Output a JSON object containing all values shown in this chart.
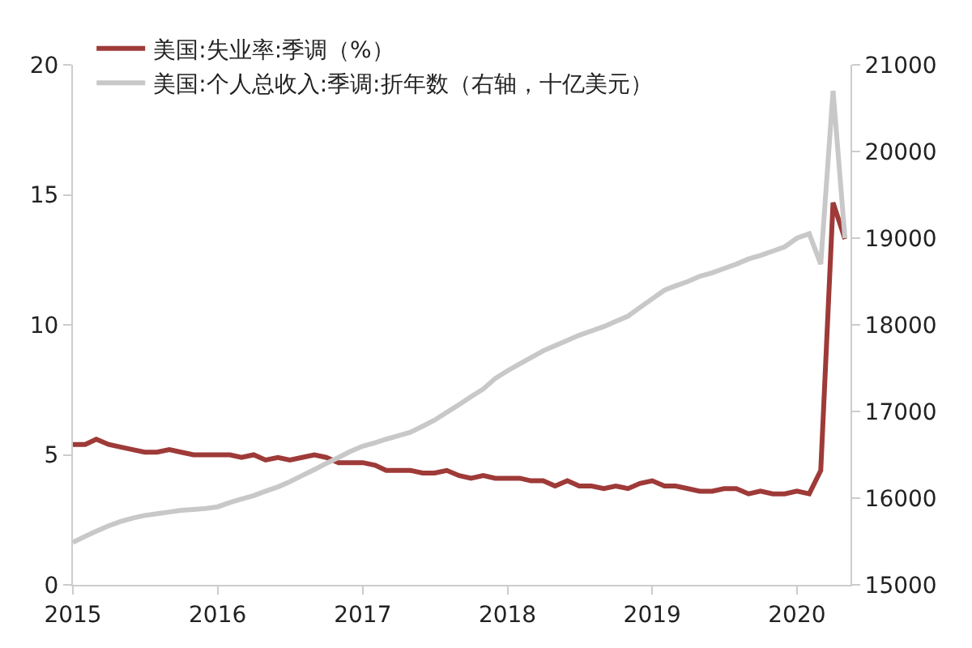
{
  "chart_data": {
    "type": "line",
    "x": [
      "2015-01",
      "2015-02",
      "2015-03",
      "2015-04",
      "2015-05",
      "2015-06",
      "2015-07",
      "2015-08",
      "2015-09",
      "2015-10",
      "2015-11",
      "2015-12",
      "2016-01",
      "2016-02",
      "2016-03",
      "2016-04",
      "2016-05",
      "2016-06",
      "2016-07",
      "2016-08",
      "2016-09",
      "2016-10",
      "2016-11",
      "2016-12",
      "2017-01",
      "2017-02",
      "2017-03",
      "2017-04",
      "2017-05",
      "2017-06",
      "2017-07",
      "2017-08",
      "2017-09",
      "2017-10",
      "2017-11",
      "2017-12",
      "2018-01",
      "2018-02",
      "2018-03",
      "2018-04",
      "2018-05",
      "2018-06",
      "2018-07",
      "2018-08",
      "2018-09",
      "2018-10",
      "2018-11",
      "2018-12",
      "2019-01",
      "2019-02",
      "2019-03",
      "2019-04",
      "2019-05",
      "2019-06",
      "2019-07",
      "2019-08",
      "2019-09",
      "2019-10",
      "2019-11",
      "2019-12",
      "2020-01",
      "2020-02",
      "2020-03",
      "2020-04",
      "2020-05"
    ],
    "series": [
      {
        "name": "美国:失业率:季调（%）",
        "color": "#9e3a38",
        "values": [
          5.4,
          5.4,
          5.6,
          5.4,
          5.3,
          5.2,
          5.1,
          5.1,
          5.2,
          5.1,
          5.0,
          5.0,
          5.0,
          5.0,
          4.9,
          5.0,
          4.8,
          4.9,
          4.8,
          4.9,
          5.0,
          4.9,
          4.7,
          4.7,
          4.7,
          4.6,
          4.4,
          4.4,
          4.4,
          4.3,
          4.3,
          4.4,
          4.2,
          4.1,
          4.2,
          4.1,
          4.1,
          4.1,
          4.0,
          4.0,
          3.8,
          4.0,
          3.8,
          3.8,
          3.7,
          3.8,
          3.7,
          3.9,
          4.0,
          3.8,
          3.8,
          3.7,
          3.6,
          3.6,
          3.7,
          3.7,
          3.5,
          3.6,
          3.5,
          3.5,
          3.6,
          3.5,
          4.4,
          14.7,
          13.3
        ]
      },
      {
        "name": "美国:个人总收入:季调:折年数（右轴，十亿美元）",
        "color": "#c8c8c8",
        "axis": "y2",
        "values": [
          15490,
          15560,
          15620,
          15680,
          15730,
          15770,
          15800,
          15820,
          15840,
          15860,
          15870,
          15880,
          15900,
          15950,
          15990,
          16030,
          16080,
          16130,
          16190,
          16260,
          16330,
          16400,
          16470,
          16540,
          16600,
          16640,
          16680,
          16720,
          16760,
          16830,
          16900,
          16990,
          17080,
          17170,
          17260,
          17380,
          17470,
          17550,
          17620,
          17700,
          17760,
          17820,
          17880,
          17930,
          17980,
          18040,
          18100,
          18200,
          18300,
          18400,
          18450,
          18500,
          18560,
          18600,
          18650,
          18700,
          18760,
          18800,
          18850,
          18900,
          19000,
          19050,
          18700,
          20700,
          19000
        ]
      }
    ],
    "xlim": [
      "2015-01-01",
      "2020-05-15"
    ],
    "xticks": [
      {
        "value": "2015-01-01",
        "label": "2015"
      },
      {
        "value": "2016-01-01",
        "label": "2016"
      },
      {
        "value": "2017-01-01",
        "label": "2017"
      },
      {
        "value": "2018-01-01",
        "label": "2018"
      },
      {
        "value": "2019-01-01",
        "label": "2019"
      },
      {
        "value": "2020-01-01",
        "label": "2020"
      }
    ],
    "ylim": [
      0,
      20
    ],
    "yticks": [
      0,
      5,
      10,
      15,
      20
    ],
    "y2lim": [
      15000,
      21000
    ],
    "y2ticks": [
      15000,
      16000,
      17000,
      18000,
      19000,
      20000,
      21000
    ],
    "legend": "top left",
    "marker": "none",
    "line_style": "solid"
  }
}
